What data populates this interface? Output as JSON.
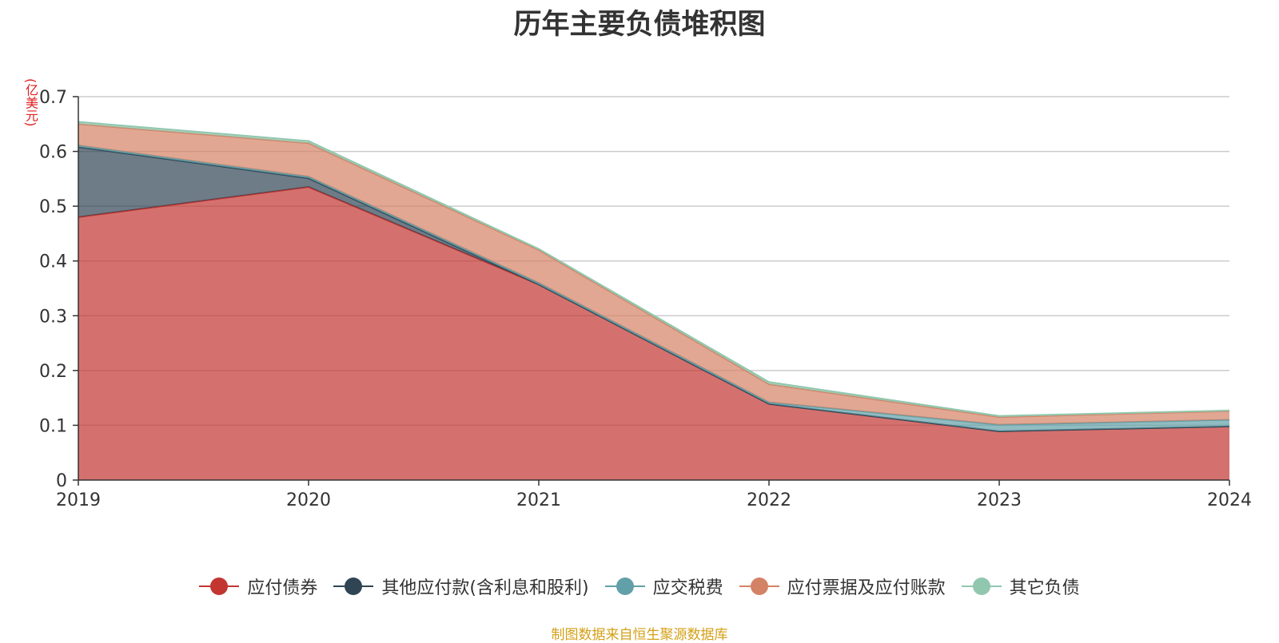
{
  "chart_data": {
    "type": "area",
    "stacked": true,
    "title": "历年主要负债堆积图",
    "unit_label": "(亿美元)",
    "x": [
      "2019",
      "2020",
      "2021",
      "2022",
      "2023",
      "2024"
    ],
    "y_ticks": [
      "0",
      "0.1",
      "0.2",
      "0.3",
      "0.4",
      "0.5",
      "0.6",
      "0.7"
    ],
    "ylim": [
      0,
      0.7
    ],
    "grid": true,
    "legend_position": "bottom",
    "series": [
      {
        "name": "应付债券",
        "color": "#c23531",
        "values": [
          0.48,
          0.535,
          0.357,
          0.139,
          0.089,
          0.098
        ]
      },
      {
        "name": "其他应付款(含利息和股利)",
        "color": "#2f4554",
        "values": [
          0.128,
          0.016,
          0.0,
          0.0,
          0.0,
          0.0
        ]
      },
      {
        "name": "应交税费",
        "color": "#61a0a8",
        "values": [
          0.003,
          0.003,
          0.003,
          0.003,
          0.012,
          0.012
        ]
      },
      {
        "name": "应付票据及应付账款",
        "color": "#d48265",
        "values": [
          0.039,
          0.061,
          0.06,
          0.033,
          0.014,
          0.016
        ]
      },
      {
        "name": "其它负债",
        "color": "#91c7ae",
        "values": [
          0.004,
          0.004,
          0.002,
          0.004,
          0.002,
          0.001
        ]
      }
    ]
  },
  "source_note": "制图数据来自恒生聚源数据库"
}
